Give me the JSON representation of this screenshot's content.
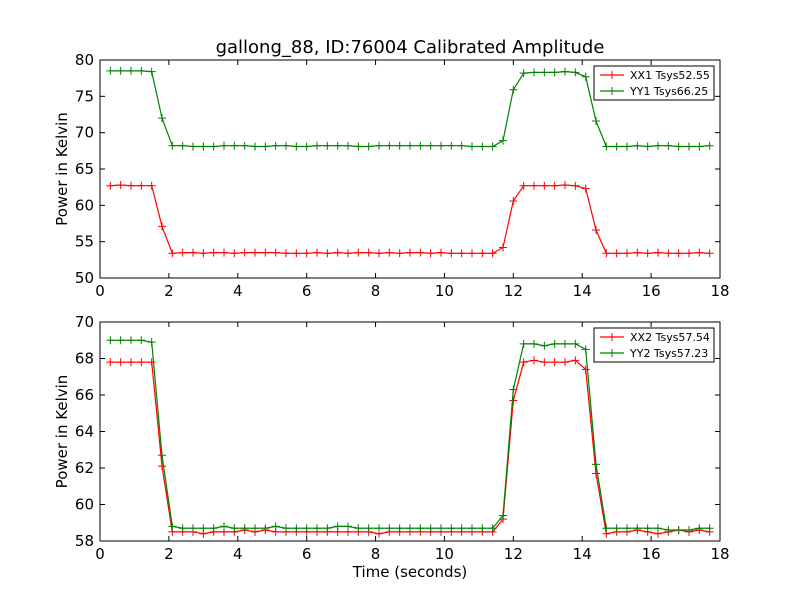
{
  "figure_title": "gallong_88, ID:76004 Calibrated Amplitude",
  "chart_data": [
    {
      "type": "line",
      "title": "gallong_88, ID:76004 Calibrated Amplitude",
      "xlabel": "",
      "ylabel": "Power in Kelvin",
      "xlim": [
        0,
        18
      ],
      "ylim": [
        50,
        80
      ],
      "xticks": [
        0,
        2,
        4,
        6,
        8,
        10,
        12,
        14,
        16,
        18
      ],
      "yticks": [
        50,
        55,
        60,
        65,
        70,
        75,
        80
      ],
      "legend_position": "top-right",
      "grid": false,
      "x": [
        0.3,
        0.6,
        0.9,
        1.2,
        1.5,
        1.8,
        2.1,
        2.4,
        2.7,
        3.0,
        3.3,
        3.6,
        3.9,
        4.2,
        4.5,
        4.8,
        5.1,
        5.4,
        5.7,
        6.0,
        6.3,
        6.6,
        6.9,
        7.2,
        7.5,
        7.8,
        8.1,
        8.4,
        8.7,
        9.0,
        9.3,
        9.6,
        9.9,
        10.2,
        10.5,
        10.8,
        11.1,
        11.4,
        11.7,
        12.0,
        12.3,
        12.6,
        12.9,
        13.2,
        13.5,
        13.8,
        14.1,
        14.4,
        14.7,
        15.0,
        15.3,
        15.6,
        15.9,
        16.2,
        16.5,
        16.8,
        17.1,
        17.4,
        17.7
      ],
      "series": [
        {
          "name": "XX1 Tsys52.55",
          "color": "#ff0000",
          "values": [
            62.7,
            62.8,
            62.7,
            62.7,
            62.7,
            57.1,
            53.4,
            53.5,
            53.5,
            53.4,
            53.5,
            53.5,
            53.4,
            53.5,
            53.5,
            53.5,
            53.5,
            53.4,
            53.4,
            53.4,
            53.5,
            53.4,
            53.5,
            53.4,
            53.5,
            53.5,
            53.4,
            53.5,
            53.4,
            53.5,
            53.5,
            53.4,
            53.5,
            53.4,
            53.4,
            53.4,
            53.4,
            53.4,
            54.2,
            60.6,
            62.7,
            62.7,
            62.7,
            62.7,
            62.8,
            62.7,
            62.3,
            56.6,
            53.4,
            53.4,
            53.4,
            53.5,
            53.4,
            53.5,
            53.4,
            53.4,
            53.4,
            53.5,
            53.4
          ]
        },
        {
          "name": "YY1 Tsys66.25",
          "color": "#008000",
          "values": [
            78.5,
            78.5,
            78.5,
            78.5,
            78.4,
            72.0,
            68.2,
            68.2,
            68.1,
            68.1,
            68.1,
            68.2,
            68.2,
            68.2,
            68.1,
            68.1,
            68.2,
            68.2,
            68.1,
            68.1,
            68.2,
            68.2,
            68.2,
            68.2,
            68.1,
            68.1,
            68.2,
            68.2,
            68.2,
            68.2,
            68.2,
            68.2,
            68.2,
            68.2,
            68.2,
            68.1,
            68.1,
            68.1,
            68.9,
            75.9,
            78.2,
            78.3,
            78.3,
            78.3,
            78.4,
            78.3,
            77.7,
            71.6,
            68.1,
            68.1,
            68.1,
            68.2,
            68.1,
            68.2,
            68.2,
            68.1,
            68.1,
            68.1,
            68.2
          ]
        }
      ]
    },
    {
      "type": "line",
      "title": "",
      "xlabel": "Time (seconds)",
      "ylabel": "Power in Kelvin",
      "xlim": [
        0,
        18
      ],
      "ylim": [
        58,
        70
      ],
      "xticks": [
        0,
        2,
        4,
        6,
        8,
        10,
        12,
        14,
        16,
        18
      ],
      "yticks": [
        58,
        60,
        62,
        64,
        66,
        68,
        70
      ],
      "legend_position": "top-right",
      "grid": false,
      "x": [
        0.3,
        0.6,
        0.9,
        1.2,
        1.5,
        1.8,
        2.1,
        2.4,
        2.7,
        3.0,
        3.3,
        3.6,
        3.9,
        4.2,
        4.5,
        4.8,
        5.1,
        5.4,
        5.7,
        6.0,
        6.3,
        6.6,
        6.9,
        7.2,
        7.5,
        7.8,
        8.1,
        8.4,
        8.7,
        9.0,
        9.3,
        9.6,
        9.9,
        10.2,
        10.5,
        10.8,
        11.1,
        11.4,
        11.7,
        12.0,
        12.3,
        12.6,
        12.9,
        13.2,
        13.5,
        13.8,
        14.1,
        14.4,
        14.7,
        15.0,
        15.3,
        15.6,
        15.9,
        16.2,
        16.5,
        16.8,
        17.1,
        17.4,
        17.7
      ],
      "series": [
        {
          "name": "XX2 Tsys57.54",
          "color": "#ff0000",
          "values": [
            67.8,
            67.8,
            67.8,
            67.8,
            67.8,
            62.1,
            58.5,
            58.5,
            58.5,
            58.4,
            58.5,
            58.5,
            58.5,
            58.6,
            58.5,
            58.6,
            58.5,
            58.5,
            58.5,
            58.5,
            58.5,
            58.5,
            58.5,
            58.5,
            58.5,
            58.5,
            58.4,
            58.5,
            58.5,
            58.5,
            58.5,
            58.5,
            58.5,
            58.5,
            58.5,
            58.5,
            58.5,
            58.5,
            59.2,
            65.7,
            67.8,
            67.9,
            67.8,
            67.8,
            67.8,
            67.9,
            67.4,
            61.7,
            58.4,
            58.5,
            58.5,
            58.6,
            58.5,
            58.4,
            58.5,
            58.6,
            58.5,
            58.6,
            58.5
          ]
        },
        {
          "name": "YY2 Tsys57.23",
          "color": "#008000",
          "values": [
            69.0,
            69.0,
            69.0,
            69.0,
            68.9,
            62.7,
            58.8,
            58.7,
            58.7,
            58.7,
            58.7,
            58.8,
            58.7,
            58.7,
            58.7,
            58.7,
            58.8,
            58.7,
            58.7,
            58.7,
            58.7,
            58.7,
            58.8,
            58.8,
            58.7,
            58.7,
            58.7,
            58.7,
            58.7,
            58.7,
            58.7,
            58.7,
            58.7,
            58.7,
            58.7,
            58.7,
            58.7,
            58.7,
            59.4,
            66.3,
            68.8,
            68.8,
            68.7,
            68.8,
            68.8,
            68.8,
            68.5,
            62.2,
            58.7,
            58.7,
            58.7,
            58.7,
            58.7,
            58.7,
            58.6,
            58.6,
            58.6,
            58.7,
            58.7
          ]
        }
      ]
    }
  ]
}
